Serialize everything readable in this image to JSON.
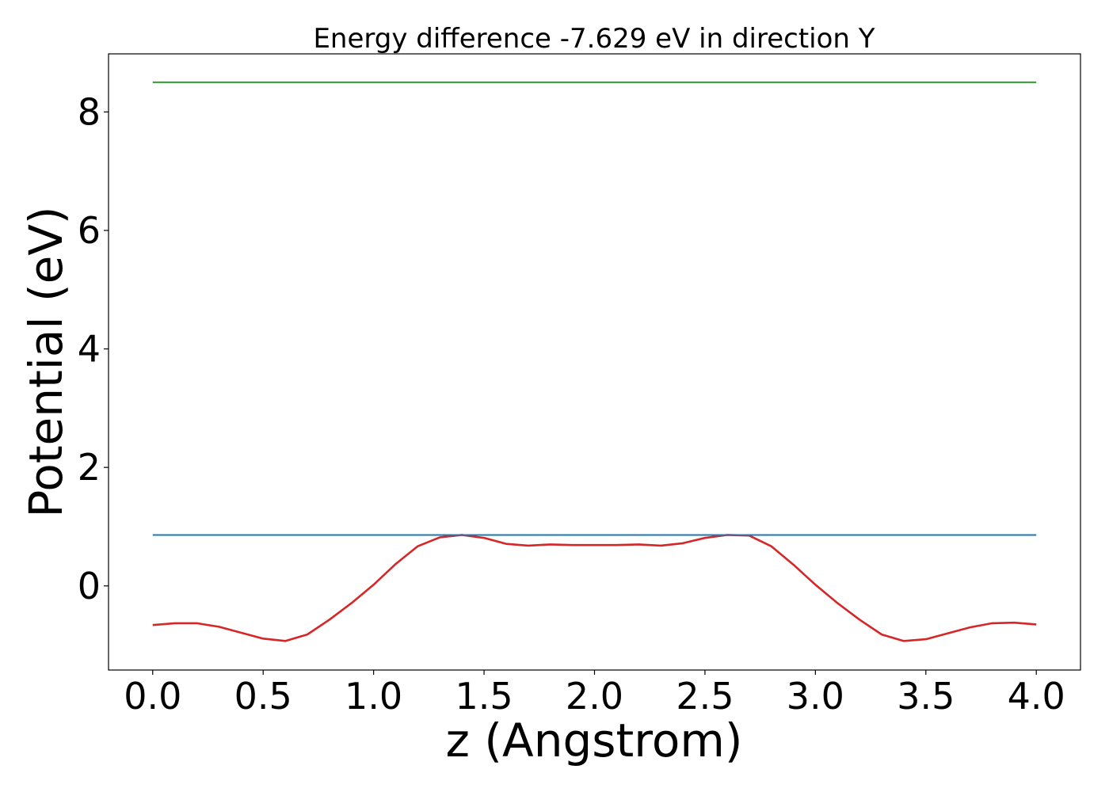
{
  "chart_data": {
    "type": "line",
    "title": "Energy difference -7.629 eV in direction Y",
    "xlabel": "z (Angstrom)",
    "ylabel": "Potential (eV)",
    "xlim": [
      -0.2,
      4.2
    ],
    "ylim": [
      -1.42,
      8.98
    ],
    "xticks": [
      0.0,
      0.5,
      1.0,
      1.5,
      2.0,
      2.5,
      3.0,
      3.5,
      4.0
    ],
    "xtick_labels": [
      "0.0",
      "0.5",
      "1.0",
      "1.5",
      "2.0",
      "2.5",
      "3.0",
      "3.5",
      "4.0"
    ],
    "yticks": [
      0,
      2,
      4,
      6,
      8
    ],
    "ytick_labels": [
      "0",
      "2",
      "4",
      "6",
      "8"
    ],
    "grid": false,
    "series": [
      {
        "color": "#d62728",
        "x": [
          0.0,
          0.1,
          0.2,
          0.3,
          0.4,
          0.5,
          0.6,
          0.7,
          0.8,
          0.9,
          1.0,
          1.1,
          1.2,
          1.3,
          1.4,
          1.5,
          1.6,
          1.7,
          1.8,
          1.9,
          2.0,
          2.1,
          2.2,
          2.3,
          2.4,
          2.5,
          2.6,
          2.7,
          2.8,
          2.9,
          3.0,
          3.1,
          3.2,
          3.3,
          3.4,
          3.5,
          3.6,
          3.7,
          3.8,
          3.9,
          4.0
        ],
        "y": [
          -0.66,
          -0.63,
          -0.63,
          -0.69,
          -0.79,
          -0.89,
          -0.93,
          -0.82,
          -0.57,
          -0.29,
          0.02,
          0.37,
          0.67,
          0.82,
          0.86,
          0.81,
          0.71,
          0.68,
          0.7,
          0.69,
          0.69,
          0.69,
          0.7,
          0.68,
          0.72,
          0.81,
          0.86,
          0.85,
          0.67,
          0.36,
          0.02,
          -0.29,
          -0.57,
          -0.82,
          -0.93,
          -0.9,
          -0.8,
          -0.7,
          -0.63,
          -0.62,
          -0.65
        ]
      },
      {
        "color": "#1f77b4",
        "x": [
          0.0,
          4.0
        ],
        "y": [
          0.86,
          0.86
        ]
      },
      {
        "color": "#2ca02c",
        "x": [
          0.0,
          4.0
        ],
        "y": [
          8.5,
          8.5
        ]
      }
    ]
  }
}
